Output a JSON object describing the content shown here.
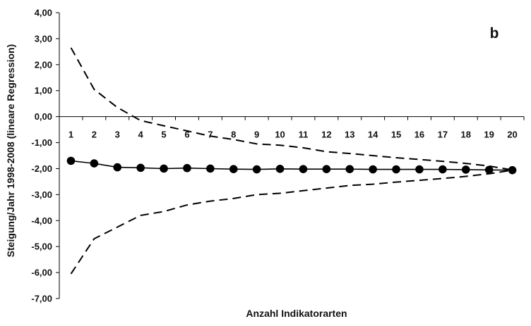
{
  "chart_data": {
    "type": "line",
    "title": "",
    "panel_label": "b",
    "xlabel": "Anzahl Indikatorarten",
    "ylabel": "Steigung/Jahr 1998-2008 (lineare Regression)",
    "categories": [
      "1",
      "2",
      "3",
      "4",
      "5",
      "6",
      "7",
      "8",
      "9",
      "10",
      "11",
      "12",
      "13",
      "14",
      "15",
      "16",
      "17",
      "18",
      "19",
      "20"
    ],
    "ylim": [
      -7,
      4
    ],
    "yticks": [
      4,
      3,
      2,
      1,
      0,
      -1,
      -2,
      -3,
      -4,
      -5,
      -6,
      -7
    ],
    "ytick_labels": [
      "4,00",
      "3,00",
      "2,00",
      "1,00",
      "0,00",
      "-1,00",
      "-2,00",
      "-3,00",
      "-4,00",
      "-5,00",
      "-6,00",
      "-7,00"
    ],
    "grid": false,
    "legend": "none",
    "series": [
      {
        "style": "solid-with-markers",
        "color": "#000000",
        "values": [
          -1.7,
          -1.8,
          -1.95,
          -1.97,
          -2.0,
          -1.98,
          -2.0,
          -2.02,
          -2.03,
          -2.01,
          -2.02,
          -2.02,
          -2.02,
          -2.03,
          -2.03,
          -2.03,
          -2.03,
          -2.04,
          -2.05,
          -2.06
        ]
      },
      {
        "style": "dashed",
        "color": "#000000",
        "values": [
          2.65,
          1.05,
          0.35,
          -0.15,
          -0.35,
          -0.55,
          -0.75,
          -0.88,
          -1.05,
          -1.1,
          -1.2,
          -1.35,
          -1.42,
          -1.5,
          -1.58,
          -1.65,
          -1.72,
          -1.8,
          -1.9,
          -2.05
        ]
      },
      {
        "style": "dashed",
        "color": "#000000",
        "values": [
          -6.05,
          -4.7,
          -4.25,
          -3.8,
          -3.65,
          -3.4,
          -3.25,
          -3.15,
          -3.0,
          -2.95,
          -2.85,
          -2.75,
          -2.65,
          -2.6,
          -2.52,
          -2.45,
          -2.38,
          -2.3,
          -2.2,
          -2.06
        ]
      }
    ]
  }
}
